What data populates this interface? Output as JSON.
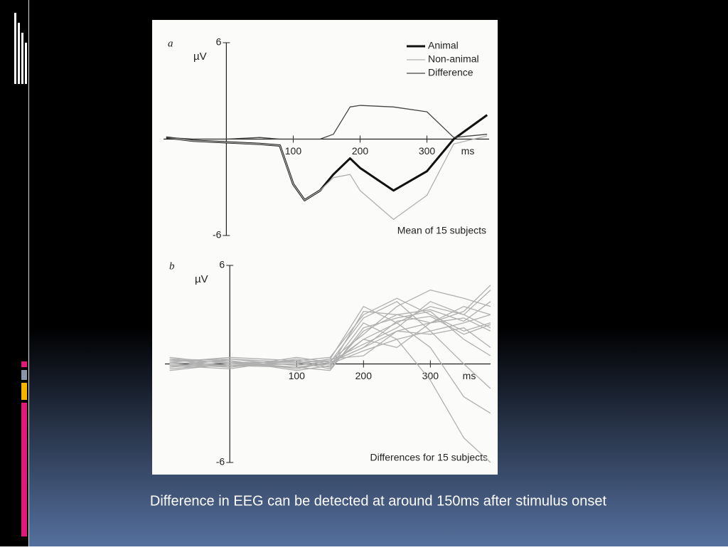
{
  "caption": "Difference in EEG can be detected at around 150ms after stimulus onset",
  "chart_data": [
    {
      "type": "line",
      "panel": "a",
      "y_label": "µV",
      "x_unit": "ms",
      "annotation": "Mean of 15 subjects",
      "x": [
        -90,
        -50,
        0,
        50,
        80,
        100,
        117,
        140,
        160,
        185,
        200,
        250,
        300,
        340,
        390
      ],
      "xlim": [
        -94,
        393
      ],
      "ylim": [
        -6,
        6
      ],
      "xticks": [
        100,
        200,
        300
      ],
      "yticks": [
        -6,
        6
      ],
      "series": [
        {
          "name": "Animal",
          "color": "#111111",
          "values": [
            0.1,
            -0.1,
            -0.2,
            -0.3,
            -0.4,
            -2.8,
            -3.8,
            -3.2,
            -2.2,
            -1.2,
            -1.8,
            -3.2,
            -2.0,
            0,
            1.5
          ]
        },
        {
          "name": "Non-animal",
          "color": "#b0b0b0",
          "values": [
            0.1,
            -0.1,
            -0.2,
            -0.3,
            -0.4,
            -2.8,
            -3.8,
            -3.2,
            -2.4,
            -2.2,
            -3.2,
            -5.0,
            -3.5,
            -0.3,
            0.2
          ]
        },
        {
          "name": "Difference",
          "color": "#444444",
          "values": [
            0.1,
            0,
            0,
            0.1,
            0,
            0,
            0,
            0,
            0.3,
            2.0,
            2.1,
            2.0,
            1.7,
            0.1,
            0.3
          ]
        }
      ]
    },
    {
      "type": "line",
      "panel": "b",
      "y_label": "µV",
      "x_unit": "ms",
      "annotation": "Differences for 15 subjects",
      "x": [
        -90,
        0,
        100,
        150,
        200,
        250,
        300,
        350,
        390
      ],
      "xlim": [
        -97,
        390
      ],
      "ylim": [
        -6,
        6
      ],
      "xticks": [
        100,
        200,
        300
      ],
      "yticks": [
        -6,
        6
      ],
      "color": "#b0b0b0",
      "series": [
        {
          "values": [
            0.2,
            0.1,
            -0.2,
            0,
            1.5,
            2.5,
            3.5,
            3,
            4.5
          ]
        },
        {
          "values": [
            -0.2,
            0.3,
            0.1,
            -0.3,
            2.0,
            3.0,
            2.5,
            3.5,
            3.0
          ]
        },
        {
          "values": [
            0.3,
            -0.2,
            0.2,
            0.4,
            3.0,
            4.0,
            3.0,
            2.0,
            2.5
          ]
        },
        {
          "values": [
            0,
            0.2,
            -0.3,
            0.1,
            1.0,
            2.0,
            2.5,
            2.8,
            2.0
          ]
        },
        {
          "values": [
            -0.3,
            0,
            0.2,
            -0.2,
            2.5,
            1.5,
            -1.0,
            -4.5,
            -6.0
          ]
        },
        {
          "values": [
            0.1,
            -0.1,
            0,
            0.3,
            3.5,
            2.5,
            1.0,
            -2.0,
            -3.0
          ]
        },
        {
          "values": [
            0.2,
            0.3,
            -0.1,
            0.2,
            1.8,
            3.5,
            4.5,
            4.0,
            3.5
          ]
        },
        {
          "values": [
            -0.1,
            -0.3,
            0.3,
            0,
            0.8,
            1.5,
            2.0,
            2.5,
            3.0
          ]
        },
        {
          "values": [
            0.4,
            0,
            -0.2,
            -0.4,
            2.2,
            2.8,
            3.2,
            1.5,
            0.5
          ]
        },
        {
          "values": [
            -0.2,
            0.1,
            0.1,
            0.2,
            1.2,
            2.2,
            3.8,
            3.0,
            2.2
          ]
        },
        {
          "values": [
            0,
            -0.2,
            0.4,
            0.1,
            2.8,
            3.8,
            2.0,
            0,
            -1.5
          ]
        },
        {
          "values": [
            0.3,
            0.2,
            -0.4,
            -0.1,
            1.5,
            1.0,
            2.5,
            3.2,
            4.8
          ]
        },
        {
          "values": [
            -0.4,
            0,
            0,
            0.3,
            0.5,
            2.0,
            1.8,
            2.2,
            1.0
          ]
        },
        {
          "values": [
            0.1,
            0.4,
            0.2,
            -0.2,
            3.2,
            3.0,
            3.3,
            2.6,
            3.8
          ]
        },
        {
          "values": [
            -0.1,
            -0.1,
            -0.2,
            0.1,
            1.0,
            2.6,
            2.9,
            1.8,
            2.4
          ]
        }
      ]
    }
  ]
}
